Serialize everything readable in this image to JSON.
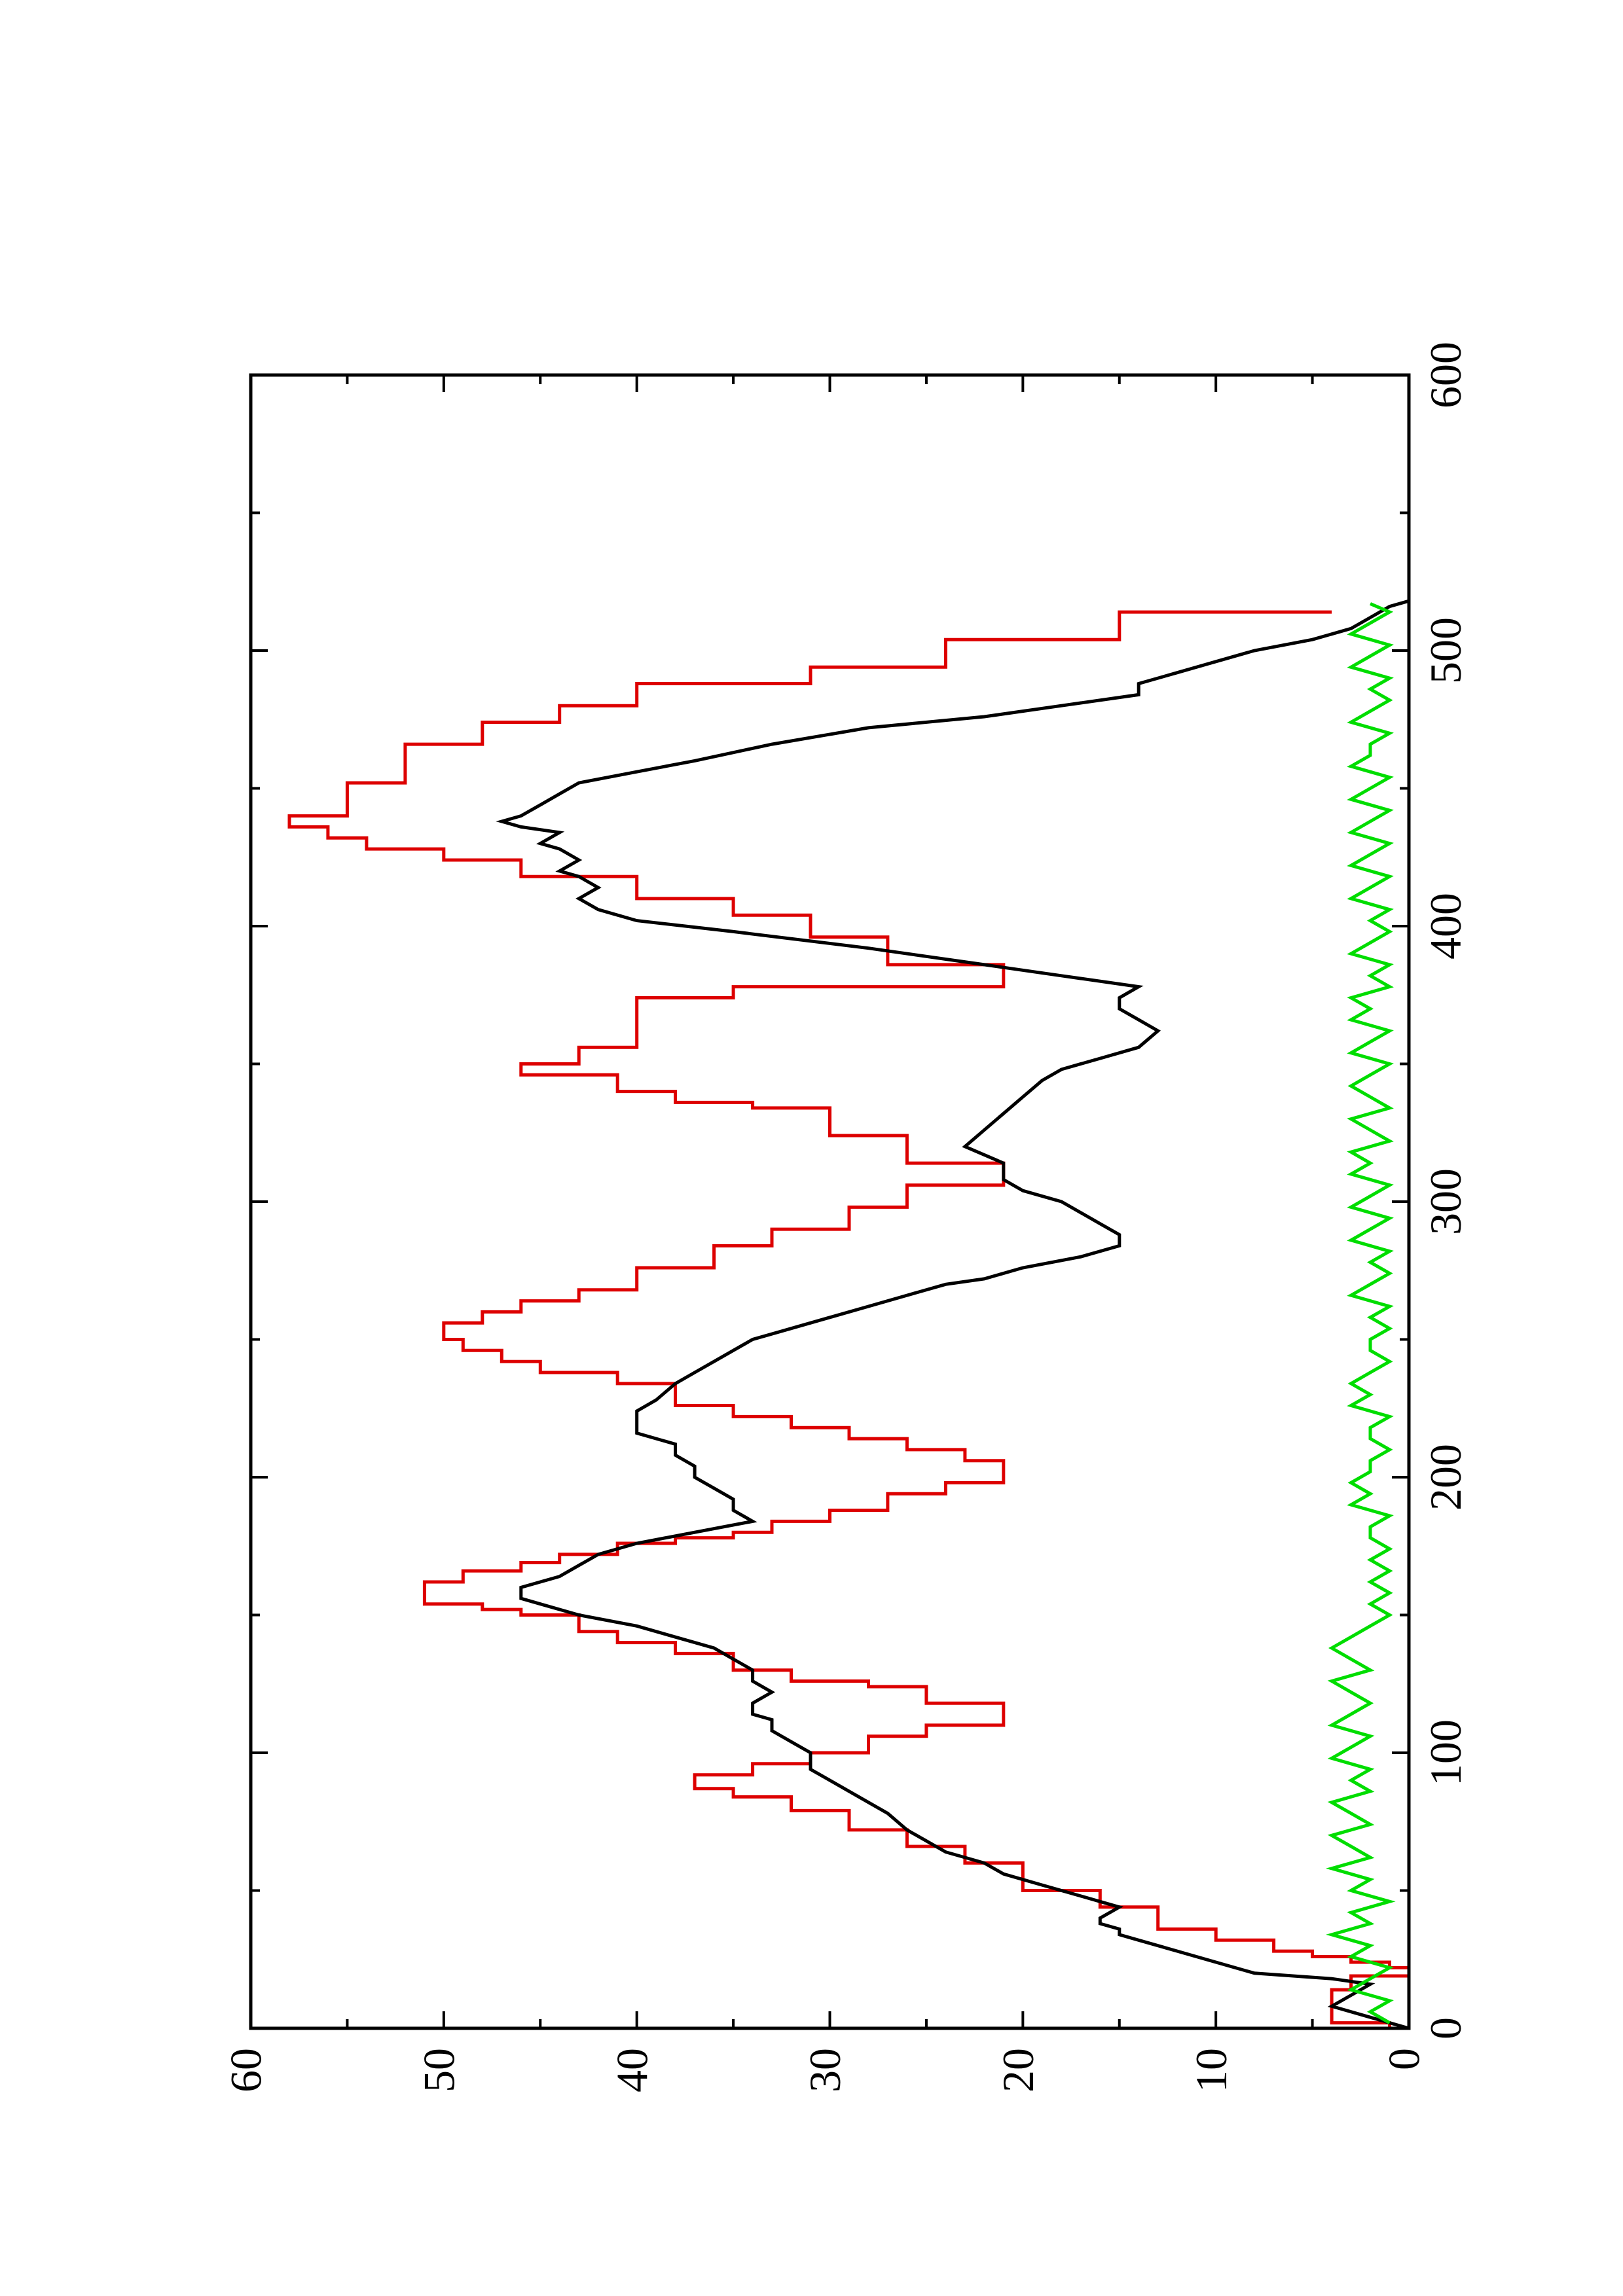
{
  "chart_data": {
    "type": "line",
    "orientation": "rotated-90-ccw",
    "title": "",
    "xlabel": "",
    "ylabel": "",
    "xlim": [
      0,
      600
    ],
    "ylim": [
      0,
      60
    ],
    "x_ticks": [
      0,
      100,
      200,
      300,
      400,
      500,
      600
    ],
    "y_ticks": [
      0,
      10,
      20,
      30,
      40,
      50,
      60
    ],
    "x_tick_labels": [
      "0",
      "100",
      "200",
      "300",
      "400",
      "500",
      "600"
    ],
    "y_tick_labels": [
      "0",
      "10",
      "20",
      "30",
      "40",
      "50",
      "60"
    ],
    "grid": false,
    "legend": "none",
    "series": [
      {
        "color": "#dd0000",
        "style": "step",
        "x": [
          0,
          2,
          4,
          6,
          8,
          10,
          14,
          19,
          20,
          22,
          24,
          26,
          28,
          32,
          36,
          44,
          50,
          54,
          60,
          66,
          72,
          79,
          84,
          87,
          88,
          92,
          96,
          100,
          106,
          110,
          114,
          118,
          124,
          126,
          130,
          136,
          140,
          144,
          150,
          152,
          154,
          158,
          162,
          166,
          169,
          172,
          176,
          178,
          180,
          184,
          188,
          194,
          198,
          202,
          206,
          210,
          214,
          218,
          222,
          226,
          234,
          238,
          242,
          246,
          250,
          252,
          256,
          260,
          264,
          268,
          276,
          284,
          290,
          298,
          306,
          314,
          324,
          334,
          336,
          340,
          346,
          350,
          356,
          374,
          378,
          386,
          396,
          404,
          410,
          418,
          424,
          428,
          432,
          436,
          440,
          452,
          466,
          474,
          480,
          488,
          494,
          504,
          514
        ],
        "y": [
          1,
          4,
          4,
          4,
          4,
          4,
          3,
          0,
          0,
          1,
          3,
          5,
          7,
          10,
          13,
          16,
          20,
          20,
          23,
          26,
          29,
          32,
          35,
          37,
          37,
          34,
          31,
          28,
          25,
          21,
          21,
          25,
          28,
          32,
          35,
          38,
          41,
          43,
          46,
          48,
          51,
          51,
          49,
          46,
          44,
          41,
          38,
          35,
          33,
          30,
          27,
          24,
          21,
          21,
          23,
          26,
          29,
          32,
          35,
          38,
          41,
          45,
          47,
          49,
          50,
          50,
          48,
          46,
          43,
          40,
          36,
          33,
          29,
          26,
          21,
          26,
          30,
          34,
          38,
          41,
          46,
          43,
          40,
          35,
          21,
          27,
          31,
          35,
          40,
          46,
          50,
          54,
          56,
          58,
          55,
          52,
          48,
          44,
          40,
          31,
          24,
          15,
          4
        ]
      },
      {
        "color": "#000000",
        "style": "line",
        "x": [
          0,
          4,
          8,
          12,
          16,
          18,
          20,
          24,
          28,
          30,
          32,
          34,
          36,
          38,
          40,
          44,
          48,
          52,
          56,
          60,
          64,
          68,
          72,
          78,
          82,
          86,
          90,
          94,
          98,
          100,
          104,
          108,
          112,
          114,
          118,
          122,
          126,
          130,
          134,
          138,
          142,
          146,
          150,
          154,
          156,
          160,
          164,
          168,
          172,
          176,
          180,
          184,
          188,
          192,
          196,
          200,
          204,
          208,
          212,
          216,
          220,
          224,
          228,
          234,
          238,
          242,
          246,
          250,
          254,
          258,
          262,
          266,
          270,
          272,
          276,
          280,
          284,
          288,
          292,
          296,
          300,
          304,
          308,
          314,
          320,
          326,
          332,
          338,
          344,
          348,
          352,
          356,
          362,
          366,
          370,
          374,
          378,
          382,
          386,
          392,
          398,
          402,
          406,
          410,
          414,
          418,
          420,
          424,
          428,
          430,
          434,
          436,
          438,
          440,
          444,
          448,
          452,
          456,
          460,
          466,
          472,
          476,
          480,
          484,
          488,
          492,
          496,
          500,
          504,
          508,
          512,
          516,
          518
        ],
        "y": [
          0,
          2,
          4,
          3,
          2,
          4,
          8,
          10,
          12,
          13,
          14,
          15,
          15,
          16,
          16,
          15,
          17,
          19,
          21,
          22,
          24,
          25,
          26,
          27,
          28,
          29,
          30,
          31,
          31,
          31,
          32,
          33,
          33,
          34,
          34,
          33,
          34,
          34,
          35,
          36,
          38,
          40,
          43,
          45,
          46,
          46,
          44,
          43,
          42,
          40,
          37,
          34,
          35,
          35,
          36,
          37,
          37,
          38,
          38,
          40,
          40,
          40,
          39,
          38,
          37,
          36,
          35,
          34,
          32,
          30,
          28,
          26,
          24,
          22,
          20,
          17,
          15,
          15,
          16,
          17,
          18,
          20,
          21,
          21,
          23,
          22,
          21,
          20,
          19,
          18,
          16,
          14,
          13,
          14,
          15,
          15,
          14,
          18,
          22,
          28,
          35,
          40,
          42,
          43,
          42,
          43,
          44,
          43,
          44,
          45,
          44,
          46,
          47,
          46,
          45,
          44,
          43,
          40,
          37,
          33,
          28,
          22,
          18,
          14,
          14,
          12,
          10,
          8,
          5,
          3,
          2,
          1,
          0
        ]
      },
      {
        "color": "#00dd00",
        "style": "line",
        "x": [
          2,
          6,
          10,
          14,
          18,
          22,
          26,
          30,
          34,
          38,
          42,
          46,
          50,
          54,
          58,
          62,
          66,
          70,
          74,
          78,
          82,
          86,
          90,
          94,
          98,
          102,
          106,
          110,
          114,
          118,
          122,
          126,
          130,
          134,
          138,
          142,
          146,
          150,
          154,
          158,
          162,
          166,
          170,
          174,
          178,
          182,
          186,
          190,
          194,
          198,
          202,
          206,
          210,
          214,
          218,
          222,
          226,
          230,
          234,
          238,
          242,
          246,
          250,
          254,
          258,
          262,
          266,
          270,
          274,
          278,
          282,
          286,
          290,
          294,
          298,
          302,
          306,
          310,
          314,
          318,
          322,
          326,
          330,
          334,
          338,
          342,
          346,
          350,
          354,
          358,
          362,
          366,
          370,
          374,
          378,
          382,
          386,
          390,
          394,
          398,
          402,
          406,
          410,
          414,
          418,
          422,
          426,
          430,
          434,
          438,
          442,
          446,
          450,
          454,
          458,
          462,
          466,
          470,
          474,
          478,
          482,
          486,
          490,
          494,
          498,
          502,
          506,
          510,
          514,
          517
        ],
        "y": [
          1,
          2,
          1,
          3,
          2,
          1,
          3,
          2,
          4,
          2,
          3,
          1,
          3,
          2,
          4,
          2,
          3,
          4,
          2,
          3,
          4,
          2,
          3,
          2,
          4,
          3,
          2,
          4,
          3,
          2,
          3,
          4,
          2,
          3,
          4,
          3,
          2,
          1,
          2,
          1,
          2,
          1,
          2,
          1,
          2,
          2,
          1,
          3,
          2,
          3,
          2,
          2,
          1,
          2,
          2,
          1,
          3,
          2,
          3,
          2,
          1,
          2,
          2,
          1,
          2,
          1,
          3,
          2,
          1,
          2,
          1,
          3,
          2,
          1,
          3,
          2,
          1,
          3,
          2,
          3,
          1,
          2,
          3,
          1,
          2,
          3,
          2,
          1,
          3,
          2,
          1,
          3,
          2,
          3,
          1,
          2,
          1,
          3,
          2,
          1,
          2,
          1,
          3,
          2,
          1,
          3,
          2,
          1,
          3,
          2,
          1,
          3,
          2,
          1,
          3,
          2,
          2,
          1,
          3,
          2,
          1,
          2,
          1,
          3,
          2,
          1,
          3,
          2,
          1,
          2
        ]
      }
    ]
  }
}
